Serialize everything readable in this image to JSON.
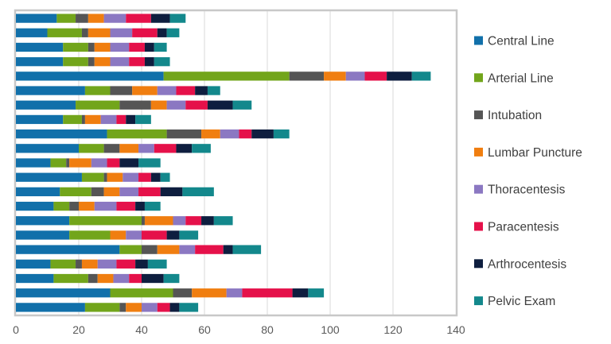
{
  "chart_data": {
    "type": "bar",
    "orientation": "horizontal",
    "stacked": true,
    "title": "",
    "xlabel": "",
    "ylabel": "",
    "xlim": [
      0,
      140
    ],
    "x_ticks": [
      0,
      20,
      40,
      60,
      80,
      100,
      120,
      140
    ],
    "grid": "vertical",
    "legend_position": "right",
    "series": [
      {
        "name": "Central Line",
        "color": "#1170AA",
        "values": [
          13,
          10,
          15,
          15,
          47,
          22,
          19,
          15,
          29,
          20,
          11,
          21,
          14,
          12,
          17,
          17,
          33,
          11,
          12,
          30,
          22
        ]
      },
      {
        "name": "Arterial Line",
        "color": "#72A51B",
        "values": [
          6,
          11,
          8,
          8,
          40,
          8,
          14,
          6,
          19,
          8,
          5,
          7,
          10,
          5,
          23,
          13,
          7,
          8,
          11,
          20,
          11
        ]
      },
      {
        "name": "Intubation",
        "color": "#555555",
        "values": [
          4,
          2,
          2,
          2,
          11,
          7,
          10,
          1,
          11,
          5,
          1,
          1,
          4,
          3,
          1,
          0,
          5,
          2,
          3,
          6,
          2
        ]
      },
      {
        "name": "Lumbar Puncture",
        "color": "#F07E10",
        "values": [
          5,
          7,
          5,
          5,
          7,
          8,
          5,
          5,
          6,
          6,
          7,
          5,
          5,
          5,
          9,
          5,
          7,
          5,
          5,
          11,
          5
        ]
      },
      {
        "name": "Thoracentesis",
        "color": "#8B78C2",
        "values": [
          7,
          7,
          6,
          6,
          6,
          6,
          6,
          5,
          6,
          5,
          5,
          5,
          6,
          7,
          4,
          5,
          5,
          6,
          5,
          5,
          5
        ]
      },
      {
        "name": "Paracentesis",
        "color": "#E5114A",
        "values": [
          8,
          8,
          5,
          5,
          7,
          6,
          7,
          3,
          4,
          7,
          4,
          4,
          7,
          6,
          5,
          8,
          9,
          6,
          4,
          16,
          4
        ]
      },
      {
        "name": "Arthrocentesis",
        "color": "#0E1E3F",
        "values": [
          6,
          3,
          3,
          3,
          8,
          4,
          8,
          3,
          7,
          5,
          6,
          3,
          7,
          3,
          4,
          4,
          3,
          4,
          7,
          5,
          3
        ]
      },
      {
        "name": "Pelvic Exam",
        "color": "#13888C",
        "values": [
          5,
          4,
          4,
          5,
          6,
          4,
          6,
          5,
          5,
          6,
          7,
          3,
          10,
          5,
          6,
          6,
          9,
          6,
          5,
          5,
          6
        ]
      }
    ]
  }
}
